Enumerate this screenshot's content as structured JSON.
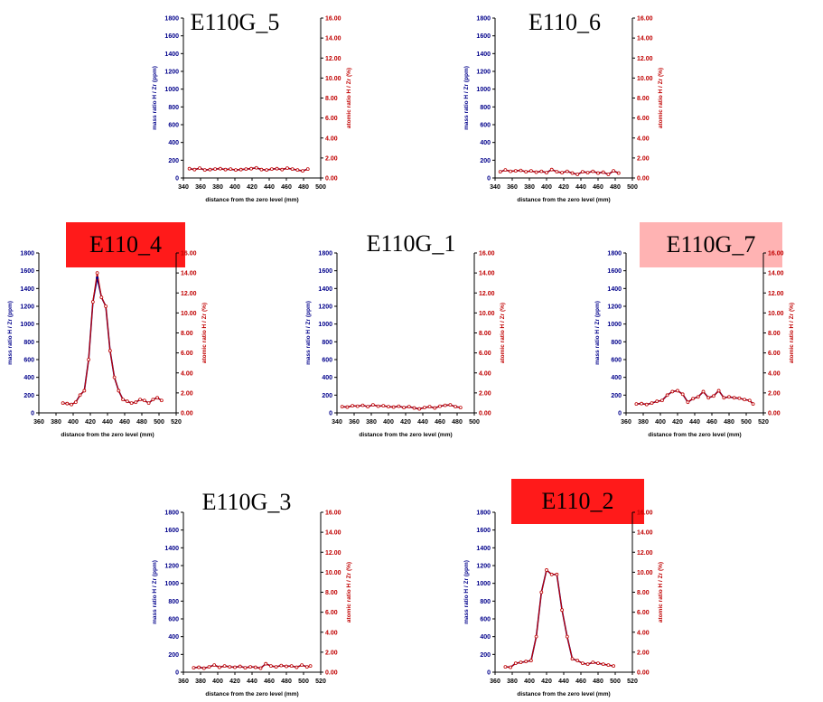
{
  "colors": {
    "mass_series": "#00008b",
    "atomic_series": "#c00000",
    "left_axis_labels": "#00008b",
    "right_axis_labels": "#c00000",
    "highlight_strong": "#ff1a1a",
    "highlight_light": "#ffb3b3"
  },
  "chart_data": [
    {
      "id": "e110g_5",
      "type": "line",
      "title": "E110G_5",
      "title_highlight": "none",
      "xlabel": "distance from the zero level (mm)",
      "ylabel": "mass ratio H / Zr (ppm)",
      "y2label": "atomic ratio H / Zr (%)",
      "xlim": [
        340,
        500
      ],
      "xticks": [
        "340",
        "360",
        "380",
        "400",
        "420",
        "440",
        "460",
        "480",
        "500"
      ],
      "ylim": [
        0,
        1800
      ],
      "yticks": [
        "0",
        "200",
        "400",
        "600",
        "800",
        "1000",
        "1200",
        "1400",
        "1600",
        "1800"
      ],
      "y2lim": [
        0,
        16
      ],
      "y2ticks": [
        "0.00",
        "2.00",
        "4.00",
        "6.00",
        "8.00",
        "10.00",
        "12.00",
        "14.00",
        "16.00"
      ],
      "x": [
        347,
        353,
        359,
        365,
        371,
        377,
        383,
        389,
        395,
        401,
        407,
        413,
        419,
        425,
        431,
        437,
        443,
        449,
        455,
        461,
        467,
        473,
        479,
        485
      ],
      "series": [
        {
          "values": [
            105,
            95,
            110,
            90,
            95,
            100,
            105,
            95,
            100,
            90,
            95,
            100,
            105,
            115,
            95,
            90,
            100,
            105,
            95,
            110,
            100,
            90,
            80,
            100
          ]
        },
        {
          "values": [
            0.93,
            0.84,
            0.98,
            0.8,
            0.84,
            0.89,
            0.93,
            0.84,
            0.89,
            0.8,
            0.84,
            0.89,
            0.93,
            1.02,
            0.84,
            0.8,
            0.89,
            0.93,
            0.84,
            0.98,
            0.89,
            0.8,
            0.71,
            0.89
          ]
        }
      ]
    },
    {
      "id": "e110_6",
      "type": "line",
      "title": "E110_6",
      "title_highlight": "none",
      "xlabel": "distance from the zero level (mm)",
      "ylabel": "mass ratio H / Zr (ppm)",
      "y2label": "atomic ratio H / Zr (%)",
      "xlim": [
        340,
        500
      ],
      "xticks": [
        "340",
        "360",
        "380",
        "400",
        "420",
        "440",
        "460",
        "480",
        "500"
      ],
      "ylim": [
        0,
        1800
      ],
      "yticks": [
        "0",
        "200",
        "400",
        "600",
        "800",
        "1000",
        "1200",
        "1400",
        "1600",
        "1800"
      ],
      "y2lim": [
        0,
        16
      ],
      "y2ticks": [
        "0.00",
        "2.00",
        "4.00",
        "6.00",
        "8.00",
        "10.00",
        "12.00",
        "14.00",
        "16.00"
      ],
      "x": [
        346,
        352,
        358,
        364,
        370,
        376,
        382,
        388,
        394,
        400,
        406,
        412,
        418,
        424,
        430,
        436,
        442,
        448,
        454,
        460,
        466,
        472,
        478,
        484
      ],
      "series": [
        {
          "values": [
            70,
            90,
            75,
            80,
            85,
            70,
            80,
            65,
            75,
            60,
            95,
            70,
            60,
            75,
            55,
            40,
            70,
            60,
            75,
            55,
            65,
            40,
            80,
            55
          ]
        },
        {
          "values": [
            0.62,
            0.8,
            0.67,
            0.71,
            0.76,
            0.62,
            0.71,
            0.58,
            0.67,
            0.53,
            0.84,
            0.62,
            0.53,
            0.67,
            0.49,
            0.36,
            0.62,
            0.53,
            0.67,
            0.49,
            0.58,
            0.36,
            0.71,
            0.49
          ]
        }
      ]
    },
    {
      "id": "e110_4",
      "type": "line",
      "title": "E110_4",
      "title_highlight": "strong",
      "xlabel": "distance from the zero level (mm)",
      "ylabel": "mass ratio H / Zr (ppm)",
      "y2label": "atomic ratio H / Zr (%)",
      "xlim": [
        360,
        520
      ],
      "xticks": [
        "360",
        "380",
        "400",
        "420",
        "440",
        "460",
        "480",
        "500",
        "520"
      ],
      "ylim": [
        0,
        1800
      ],
      "yticks": [
        "0",
        "200",
        "400",
        "600",
        "800",
        "1000",
        "1200",
        "1400",
        "1600",
        "1800"
      ],
      "y2lim": [
        0,
        16
      ],
      "y2ticks": [
        "0.00",
        "2.00",
        "4.00",
        "6.00",
        "8.00",
        "10.00",
        "12.00",
        "14.00",
        "16.00"
      ],
      "x": [
        388,
        393,
        398,
        403,
        408,
        413,
        418,
        423,
        428,
        433,
        438,
        443,
        448,
        453,
        458,
        463,
        468,
        473,
        478,
        483,
        488,
        493,
        498,
        503
      ],
      "series": [
        {
          "values": [
            110,
            105,
            95,
            120,
            200,
            250,
            600,
            1250,
            1520,
            1300,
            1200,
            700,
            400,
            250,
            150,
            130,
            110,
            120,
            150,
            140,
            110,
            150,
            170,
            140
          ]
        },
        {
          "values": [
            0.98,
            0.93,
            0.84,
            1.07,
            1.78,
            2.22,
            5.33,
            11.11,
            14.0,
            11.56,
            10.67,
            6.22,
            3.56,
            2.22,
            1.33,
            1.16,
            0.98,
            1.07,
            1.33,
            1.24,
            0.98,
            1.33,
            1.51,
            1.24
          ]
        }
      ]
    },
    {
      "id": "e110g_1",
      "type": "line",
      "title": "E110G_1",
      "title_highlight": "none",
      "xlabel": "distance from the zero level (mm)",
      "ylabel": "mass ratio H / Zr (ppm)",
      "y2label": "atomic ratio H / Zr (%)",
      "xlim": [
        340,
        500
      ],
      "xticks": [
        "340",
        "360",
        "380",
        "400",
        "420",
        "440",
        "460",
        "480",
        "500"
      ],
      "ylim": [
        0,
        1800
      ],
      "yticks": [
        "0",
        "200",
        "400",
        "600",
        "800",
        "1000",
        "1200",
        "1400",
        "1600",
        "1800"
      ],
      "y2lim": [
        0,
        16
      ],
      "y2ticks": [
        "0.00",
        "2.00",
        "4.00",
        "6.00",
        "8.00",
        "10.00",
        "12.00",
        "14.00",
        "16.00"
      ],
      "x": [
        346,
        352,
        358,
        364,
        370,
        376,
        382,
        388,
        394,
        400,
        406,
        412,
        418,
        424,
        430,
        436,
        442,
        448,
        454,
        460,
        466,
        472,
        478,
        484
      ],
      "series": [
        {
          "values": [
            70,
            65,
            80,
            75,
            85,
            70,
            90,
            75,
            80,
            70,
            65,
            75,
            60,
            70,
            55,
            45,
            60,
            70,
            55,
            75,
            85,
            90,
            70,
            60
          ]
        },
        {
          "values": [
            0.62,
            0.58,
            0.71,
            0.67,
            0.76,
            0.62,
            0.8,
            0.67,
            0.71,
            0.62,
            0.58,
            0.67,
            0.53,
            0.62,
            0.49,
            0.4,
            0.53,
            0.62,
            0.49,
            0.67,
            0.76,
            0.8,
            0.62,
            0.53
          ]
        }
      ]
    },
    {
      "id": "e110g_7",
      "type": "line",
      "title": "E110G_7",
      "title_highlight": "light",
      "xlabel": "distance from the zero level (mm)",
      "ylabel": "mass ratio H / Zr (ppm)",
      "y2label": "atomic ratio H / Zr (%)",
      "xlim": [
        360,
        520
      ],
      "xticks": [
        "360",
        "380",
        "400",
        "420",
        "440",
        "460",
        "480",
        "500",
        "520"
      ],
      "ylim": [
        0,
        1800
      ],
      "yticks": [
        "0",
        "200",
        "400",
        "600",
        "800",
        "1000",
        "1200",
        "1400",
        "1600",
        "1800"
      ],
      "y2lim": [
        0,
        16
      ],
      "y2ticks": [
        "0.00",
        "2.00",
        "4.00",
        "6.00",
        "8.00",
        "10.00",
        "12.00",
        "14.00",
        "16.00"
      ],
      "x": [
        372,
        378,
        384,
        390,
        396,
        402,
        408,
        414,
        420,
        426,
        432,
        438,
        444,
        450,
        456,
        462,
        468,
        474,
        480,
        486,
        492,
        498,
        504,
        508
      ],
      "series": [
        {
          "values": [
            100,
            105,
            95,
            110,
            130,
            140,
            200,
            240,
            250,
            210,
            120,
            160,
            180,
            240,
            170,
            190,
            250,
            170,
            180,
            170,
            165,
            150,
            140,
            100
          ]
        },
        {
          "values": [
            0.89,
            0.93,
            0.84,
            0.98,
            1.16,
            1.24,
            1.78,
            2.13,
            2.22,
            1.87,
            1.07,
            1.42,
            1.6,
            2.13,
            1.51,
            1.69,
            2.22,
            1.51,
            1.6,
            1.51,
            1.47,
            1.33,
            1.24,
            0.89
          ]
        }
      ]
    },
    {
      "id": "e110g_3",
      "type": "line",
      "title": "E110G_3",
      "title_highlight": "none",
      "xlabel": "distance from the zero level (mm)",
      "ylabel": "mass ratio H / Zr (ppm)",
      "y2label": "atomic ratio H / Zr (%)",
      "xlim": [
        360,
        520
      ],
      "xticks": [
        "360",
        "380",
        "400",
        "420",
        "440",
        "460",
        "480",
        "500",
        "520"
      ],
      "ylim": [
        0,
        1800
      ],
      "yticks": [
        "0",
        "200",
        "400",
        "600",
        "800",
        "1000",
        "1200",
        "1400",
        "1600",
        "1800"
      ],
      "y2lim": [
        0,
        16
      ],
      "y2ticks": [
        "0.00",
        "2.00",
        "4.00",
        "6.00",
        "8.00",
        "10.00",
        "12.00",
        "14.00",
        "16.00"
      ],
      "x": [
        372,
        378,
        384,
        390,
        396,
        402,
        408,
        414,
        420,
        426,
        432,
        438,
        444,
        450,
        456,
        462,
        468,
        474,
        480,
        486,
        492,
        498,
        504,
        508
      ],
      "series": [
        {
          "values": [
            50,
            55,
            45,
            60,
            80,
            55,
            70,
            60,
            55,
            65,
            50,
            60,
            55,
            45,
            95,
            70,
            60,
            75,
            65,
            70,
            55,
            80,
            60,
            70
          ]
        },
        {
          "values": [
            0.44,
            0.49,
            0.4,
            0.53,
            0.71,
            0.49,
            0.62,
            0.53,
            0.49,
            0.58,
            0.44,
            0.53,
            0.49,
            0.4,
            0.84,
            0.62,
            0.53,
            0.67,
            0.58,
            0.62,
            0.49,
            0.71,
            0.53,
            0.62
          ]
        }
      ]
    },
    {
      "id": "e110_2",
      "type": "line",
      "title": "E110_2",
      "title_highlight": "strong",
      "xlabel": "distance from the zero level (mm)",
      "ylabel": "mass ratio H / Zr (ppm)",
      "y2label": "atomic ratio H / Zr (%)",
      "xlim": [
        360,
        520
      ],
      "xticks": [
        "360",
        "380",
        "400",
        "420",
        "440",
        "460",
        "480",
        "500",
        "520"
      ],
      "ylim": [
        0,
        1800
      ],
      "yticks": [
        "0",
        "200",
        "400",
        "600",
        "800",
        "1000",
        "1200",
        "1400",
        "1600",
        "1800"
      ],
      "y2lim": [
        0,
        16
      ],
      "y2ticks": [
        "0.00",
        "2.00",
        "4.00",
        "6.00",
        "8.00",
        "10.00",
        "12.00",
        "14.00",
        "16.00"
      ],
      "x": [
        372,
        378,
        384,
        390,
        396,
        402,
        408,
        414,
        420,
        426,
        432,
        438,
        444,
        450,
        456,
        462,
        468,
        474,
        480,
        486,
        492,
        498
      ],
      "series": [
        {
          "values": [
            60,
            55,
            100,
            110,
            120,
            130,
            400,
            900,
            1150,
            1100,
            1100,
            700,
            400,
            150,
            130,
            100,
            90,
            110,
            100,
            90,
            80,
            70
          ]
        },
        {
          "values": [
            0.53,
            0.49,
            0.89,
            0.98,
            1.07,
            1.16,
            3.56,
            8.0,
            10.22,
            9.78,
            9.78,
            6.22,
            3.56,
            1.33,
            1.16,
            0.89,
            0.8,
            0.98,
            0.89,
            0.8,
            0.71,
            0.62
          ]
        }
      ]
    }
  ]
}
